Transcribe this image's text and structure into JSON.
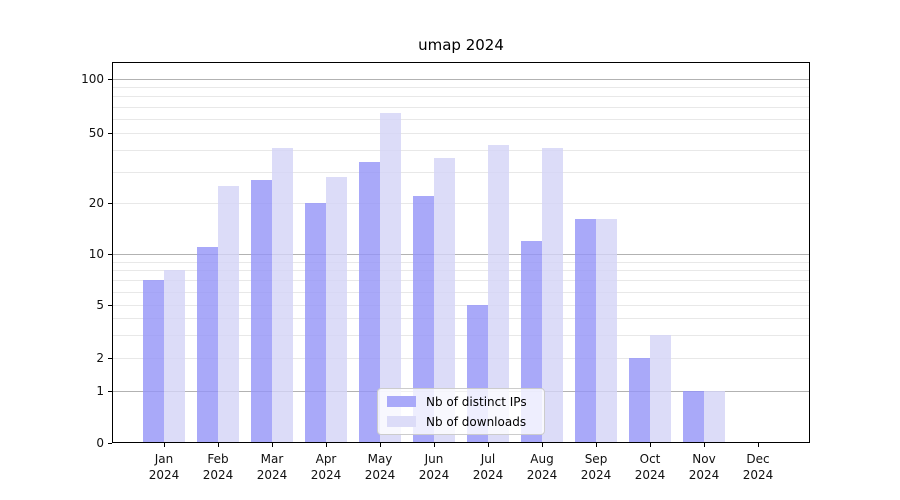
{
  "title": "umap 2024",
  "chart_data": {
    "type": "bar",
    "title": "umap 2024",
    "year": "2024",
    "months": [
      "Jan",
      "Feb",
      "Mar",
      "Apr",
      "May",
      "Jun",
      "Jul",
      "Aug",
      "Sep",
      "Oct",
      "Nov",
      "Dec"
    ],
    "categories": [
      "Jan 2024",
      "Feb 2024",
      "Mar 2024",
      "Apr 2024",
      "May 2024",
      "Jun 2024",
      "Jul 2024",
      "Aug 2024",
      "Sep 2024",
      "Oct 2024",
      "Nov 2024",
      "Dec 2024"
    ],
    "series": [
      {
        "name": "Nb of distinct IPs",
        "color": "#a9a9f9",
        "values": [
          7,
          11,
          27,
          20,
          34,
          22,
          5,
          12,
          16,
          2,
          1,
          0
        ]
      },
      {
        "name": "Nb of downloads",
        "color": "#dcdcf8",
        "values": [
          8,
          25,
          41,
          28,
          65,
          36,
          43,
          41,
          16,
          3,
          1,
          0
        ]
      }
    ],
    "y_ticks": [
      0,
      1,
      2,
      5,
      10,
      20,
      50,
      100
    ],
    "y_scale": "symlog",
    "ylim": [
      0,
      140
    ],
    "grid": true,
    "grid_major_at": [
      1,
      10,
      100
    ],
    "legend_position": "lower center",
    "xlabel": "",
    "ylabel": ""
  }
}
